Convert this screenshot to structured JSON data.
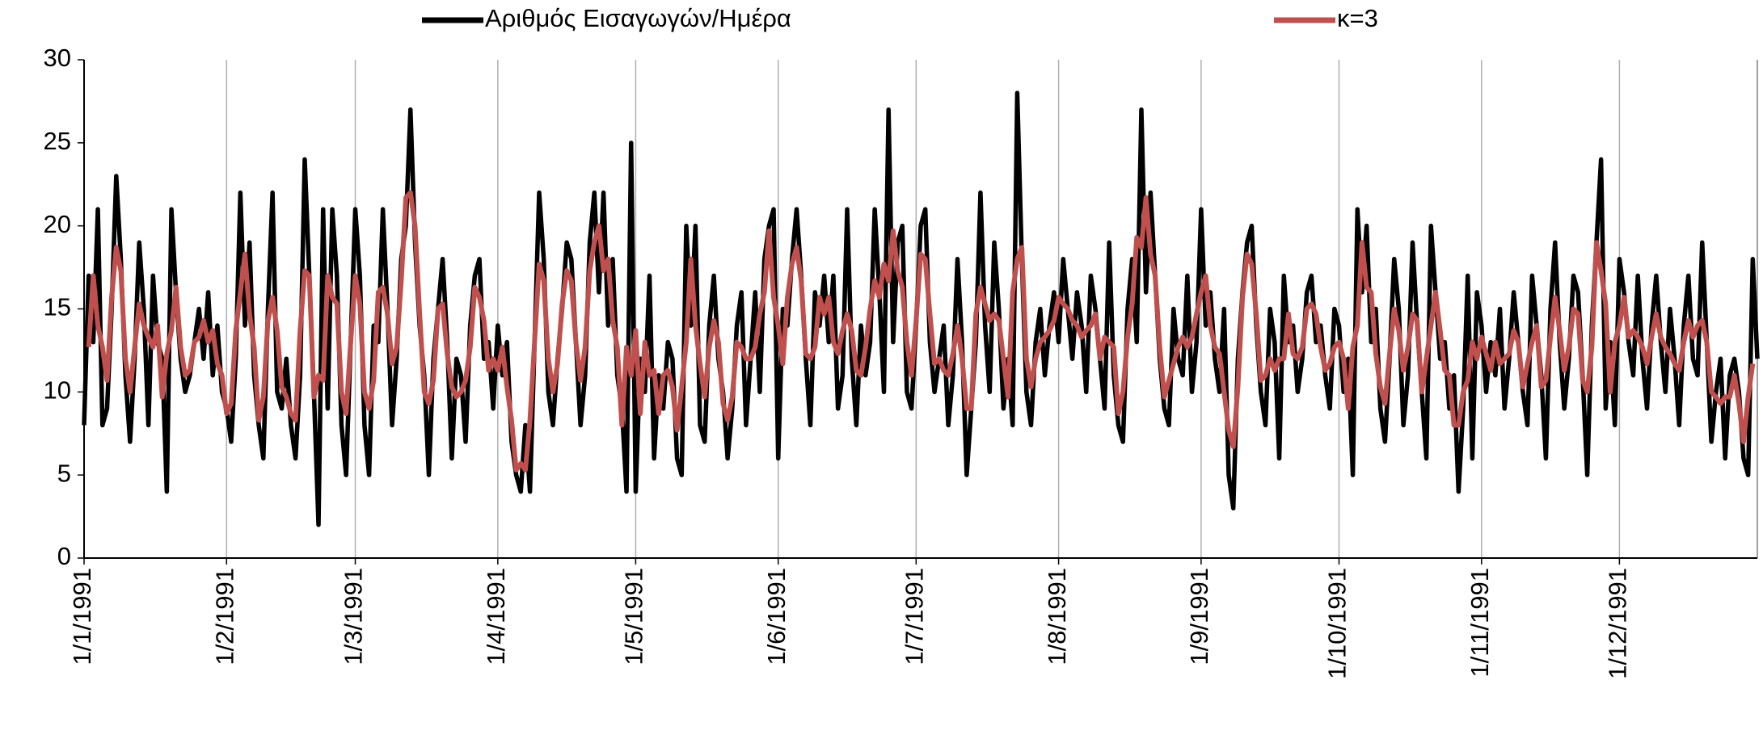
{
  "chart_data": {
    "type": "line",
    "categories": [
      "1/1/1991",
      null,
      null,
      null,
      null,
      null,
      null,
      null,
      null,
      null,
      null,
      null,
      null,
      null,
      null,
      null,
      null,
      null,
      null,
      null,
      null,
      null,
      null,
      null,
      null,
      null,
      null,
      null,
      null,
      null,
      null,
      "1/2/1991",
      null,
      null,
      null,
      null,
      null,
      null,
      null,
      null,
      null,
      null,
      null,
      null,
      null,
      null,
      null,
      null,
      null,
      null,
      null,
      null,
      null,
      null,
      null,
      null,
      null,
      null,
      null,
      "1/3/1991",
      null,
      null,
      null,
      null,
      null,
      null,
      null,
      null,
      null,
      null,
      null,
      null,
      null,
      null,
      null,
      null,
      null,
      null,
      null,
      null,
      null,
      null,
      null,
      null,
      null,
      null,
      null,
      null,
      null,
      null,
      "1/4/1991",
      null,
      null,
      null,
      null,
      null,
      null,
      null,
      null,
      null,
      null,
      null,
      null,
      null,
      null,
      null,
      null,
      null,
      null,
      null,
      null,
      null,
      null,
      null,
      null,
      null,
      null,
      null,
      null,
      null,
      "1/5/1991",
      null,
      null,
      null,
      null,
      null,
      null,
      null,
      null,
      null,
      null,
      null,
      null,
      null,
      null,
      null,
      null,
      null,
      null,
      null,
      null,
      null,
      null,
      null,
      null,
      null,
      null,
      null,
      null,
      null,
      null,
      "1/6/1991",
      null,
      null,
      null,
      null,
      null,
      null,
      null,
      null,
      null,
      null,
      null,
      null,
      null,
      null,
      null,
      null,
      null,
      null,
      null,
      null,
      null,
      null,
      null,
      null,
      null,
      null,
      null,
      null,
      null,
      "1/7/1991",
      null,
      null,
      null,
      null,
      null,
      null,
      null,
      null,
      null,
      null,
      null,
      null,
      null,
      null,
      null,
      null,
      null,
      null,
      null,
      null,
      null,
      null,
      null,
      null,
      null,
      null,
      null,
      null,
      null,
      null,
      "1/8/1991",
      null,
      null,
      null,
      null,
      null,
      null,
      null,
      null,
      null,
      null,
      null,
      null,
      null,
      null,
      null,
      null,
      null,
      null,
      null,
      null,
      null,
      null,
      null,
      null,
      null,
      null,
      null,
      null,
      null,
      null,
      "1/9/1991",
      null,
      null,
      null,
      null,
      null,
      null,
      null,
      null,
      null,
      null,
      null,
      null,
      null,
      null,
      null,
      null,
      null,
      null,
      null,
      null,
      null,
      null,
      null,
      null,
      null,
      null,
      null,
      null,
      null,
      "1/10/1991",
      null,
      null,
      null,
      null,
      null,
      null,
      null,
      null,
      null,
      null,
      null,
      null,
      null,
      null,
      null,
      null,
      null,
      null,
      null,
      null,
      null,
      null,
      null,
      null,
      null,
      null,
      null,
      null,
      null,
      null,
      "1/11/1991",
      null,
      null,
      null,
      null,
      null,
      null,
      null,
      null,
      null,
      null,
      null,
      null,
      null,
      null,
      null,
      null,
      null,
      null,
      null,
      null,
      null,
      null,
      null,
      null,
      null,
      null,
      null,
      null,
      null,
      "1/12/1991",
      null,
      null,
      null,
      null,
      null,
      null,
      null,
      null,
      null,
      null,
      null,
      null,
      null,
      null,
      null,
      null,
      null,
      null,
      null,
      null,
      null,
      null,
      null,
      null,
      null,
      null,
      null,
      null,
      null,
      null
    ],
    "series": [
      {
        "name": "Αριθμός Εισαγωγών/Ημέρα",
        "color": "#000000",
        "values": [
          8,
          17,
          13,
          21,
          8,
          9,
          15,
          23,
          18,
          11,
          7,
          12,
          19,
          15,
          8,
          17,
          13,
          12,
          4,
          21,
          16,
          12,
          10,
          11,
          13,
          15,
          12,
          16,
          11,
          14,
          10,
          9,
          7,
          12,
          22,
          14,
          19,
          11,
          8,
          6,
          15,
          22,
          10,
          9,
          12,
          8,
          6,
          11,
          24,
          17,
          10,
          2,
          21,
          9,
          21,
          17,
          8,
          5,
          13,
          21,
          17,
          8,
          5,
          14,
          13,
          21,
          15,
          8,
          12,
          18,
          20,
          27,
          19,
          14,
          11,
          5,
          12,
          15,
          18,
          13,
          6,
          12,
          11,
          7,
          14,
          17,
          18,
          12,
          13,
          9,
          14,
          11,
          13,
          7,
          5,
          4,
          8,
          4,
          13,
          22,
          18,
          10,
          8,
          12,
          15,
          19,
          18,
          13,
          8,
          11,
          19,
          22,
          16,
          22,
          14,
          18,
          11,
          9,
          4,
          25,
          4,
          12,
          10,
          17,
          6,
          11,
          9,
          13,
          12,
          6,
          5,
          20,
          14,
          20,
          8,
          7,
          14,
          17,
          12,
          10,
          6,
          9,
          14,
          16,
          8,
          12,
          16,
          10,
          18,
          20,
          21,
          6,
          15,
          14,
          18,
          21,
          17,
          12,
          8,
          16,
          14,
          17,
          13,
          17,
          9,
          11,
          21,
          12,
          8,
          14,
          11,
          13,
          21,
          16,
          10,
          27,
          13,
          19,
          20,
          10,
          9,
          14,
          20,
          21,
          13,
          10,
          12,
          14,
          8,
          11,
          18,
          13,
          5,
          9,
          13,
          22,
          14,
          10,
          19,
          15,
          9,
          12,
          8,
          28,
          18,
          10,
          8,
          13,
          15,
          11,
          14,
          16,
          13,
          18,
          15,
          12,
          16,
          14,
          10,
          17,
          15,
          12,
          9,
          19,
          11,
          8,
          7,
          15,
          18,
          13,
          27,
          16,
          22,
          17,
          12,
          9,
          8,
          15,
          12,
          11,
          17,
          10,
          13,
          21,
          14,
          16,
          12,
          10,
          15,
          5,
          3,
          12,
          16,
          19,
          20,
          14,
          10,
          8,
          15,
          13,
          6,
          17,
          13,
          14,
          10,
          12,
          16,
          17,
          13,
          14,
          11,
          9,
          15,
          14,
          10,
          12,
          5,
          21,
          16,
          20,
          13,
          15,
          9,
          7,
          12,
          18,
          15,
          8,
          11,
          19,
          14,
          10,
          6,
          20,
          16,
          12,
          13,
          9,
          11,
          4,
          9,
          17,
          6,
          16,
          14,
          10,
          13,
          11,
          15,
          9,
          12,
          16,
          13,
          10,
          8,
          17,
          14,
          11,
          6,
          15,
          19,
          13,
          9,
          12,
          17,
          16,
          11,
          5,
          14,
          19,
          24,
          9,
          13,
          8,
          18,
          16,
          13,
          11,
          17,
          12,
          9,
          14,
          17,
          13,
          10,
          15,
          12,
          8,
          14,
          17,
          12,
          11,
          19,
          13,
          7,
          10,
          12,
          6,
          11,
          12,
          10,
          6,
          5,
          18,
          12
        ]
      },
      {
        "name": "κ=3",
        "color": "#c0504d",
        "values": [
          null,
          12.7,
          17,
          14,
          12.7,
          10.7,
          15.7,
          18.7,
          17.3,
          12,
          10,
          12.7,
          15.3,
          14,
          13.3,
          12.7,
          14,
          9.7,
          12.3,
          13.7,
          16.3,
          12.7,
          11,
          11.3,
          13,
          13.3,
          14.3,
          13,
          13.7,
          11.7,
          11,
          8.7,
          9.3,
          13.7,
          16,
          18.3,
          14.7,
          12.7,
          8.3,
          9.7,
          14.3,
          15.7,
          13.7,
          10.3,
          9.7,
          8.7,
          8.3,
          13.7,
          17.3,
          17,
          9.7,
          11,
          10.7,
          17,
          15.7,
          15.3,
          10,
          8.7,
          13,
          17,
          15.3,
          10,
          9,
          10.7,
          16,
          16.3,
          14.7,
          11.7,
          12.7,
          16.7,
          21.7,
          22,
          20,
          14.7,
          10,
          9.3,
          10.7,
          15,
          15.3,
          12.3,
          10.3,
          9.7,
          10,
          10.7,
          12.7,
          16.3,
          15.7,
          14.3,
          11.3,
          12,
          11.3,
          12.7,
          10.3,
          8.3,
          5.3,
          5.7,
          5.3,
          8.3,
          13,
          17.7,
          16.7,
          12,
          10,
          11.7,
          15.3,
          17.3,
          16.7,
          13,
          10.7,
          12.7,
          17.3,
          19,
          20,
          17.3,
          18,
          14.3,
          12.7,
          8,
          12.7,
          11,
          13.7,
          8.7,
          13,
          11,
          11.3,
          8.7,
          11,
          11.3,
          10.3,
          7.7,
          10.3,
          13,
          18,
          14,
          11.7,
          9.7,
          12.7,
          14.3,
          13,
          9.3,
          8.3,
          9.7,
          13,
          12.7,
          12,
          12,
          12.7,
          14.7,
          16,
          19.7,
          15.7,
          14,
          11.7,
          15.7,
          17.7,
          18.7,
          16.7,
          12.3,
          12,
          12.7,
          15.7,
          14.7,
          15.7,
          13,
          12.3,
          13.7,
          14.7,
          13.7,
          11.3,
          11,
          12.7,
          15,
          16.7,
          15.7,
          17.7,
          16.7,
          19.7,
          17.3,
          16.3,
          13,
          11,
          14.3,
          18.3,
          18,
          14.7,
          11.7,
          12,
          11.3,
          11,
          12.3,
          14,
          12,
          9,
          9,
          14.7,
          16.3,
          15.3,
          14.3,
          14.7,
          14.3,
          12,
          9.7,
          16,
          18,
          18.7,
          12,
          10.3,
          12,
          13,
          13.3,
          13.7,
          14.3,
          15.7,
          15.3,
          15,
          14.3,
          14,
          13.3,
          13.7,
          14,
          14.7,
          12,
          13.3,
          13,
          12.7,
          8.7,
          10,
          13.3,
          15.3,
          19.3,
          18.7,
          21.7,
          18.3,
          17,
          12.7,
          9.7,
          10.7,
          11.7,
          12.7,
          13.3,
          12.7,
          13.3,
          14.7,
          16,
          17,
          14,
          12.7,
          12.3,
          10,
          7.7,
          6.7,
          10.3,
          15.7,
          18.3,
          17.7,
          14.7,
          10.7,
          11,
          12,
          11.3,
          12,
          12,
          14.7,
          12.3,
          12,
          12.7,
          15,
          15.3,
          14.7,
          12.7,
          11.3,
          11.7,
          12.7,
          13,
          12,
          9,
          12.7,
          14,
          19,
          16.3,
          16,
          12.3,
          10.3,
          9.3,
          12.3,
          15,
          13.7,
          11.3,
          12.7,
          14.7,
          14.3,
          10,
          12,
          14,
          16,
          13.7,
          11.3,
          11,
          8,
          8,
          10,
          10.7,
          13,
          12,
          13.3,
          12.3,
          11.3,
          13,
          11.7,
          12,
          12.3,
          13.7,
          13,
          10.3,
          11.7,
          13,
          14,
          10.3,
          10.7,
          13.3,
          15.7,
          13.7,
          11.3,
          12.7,
          15,
          14.7,
          10.7,
          10,
          12.7,
          19,
          17.3,
          15.3,
          10,
          13,
          14,
          15.7,
          13.3,
          13.7,
          13.3,
          12.7,
          11.7,
          13.3,
          14.7,
          13.3,
          12.7,
          12.3,
          11.7,
          11.3,
          13,
          14.3,
          13.3,
          14,
          14.3,
          13,
          10,
          9.7,
          9.3,
          9.7,
          9.7,
          11,
          9.3,
          7,
          9.7,
          11.7,
          null
        ]
      }
    ],
    "ylim": [
      0,
      30
    ],
    "yticks": [
      0,
      5,
      10,
      15,
      20,
      25,
      30
    ],
    "xgrid": true,
    "ygrid": false,
    "legend": "top"
  }
}
